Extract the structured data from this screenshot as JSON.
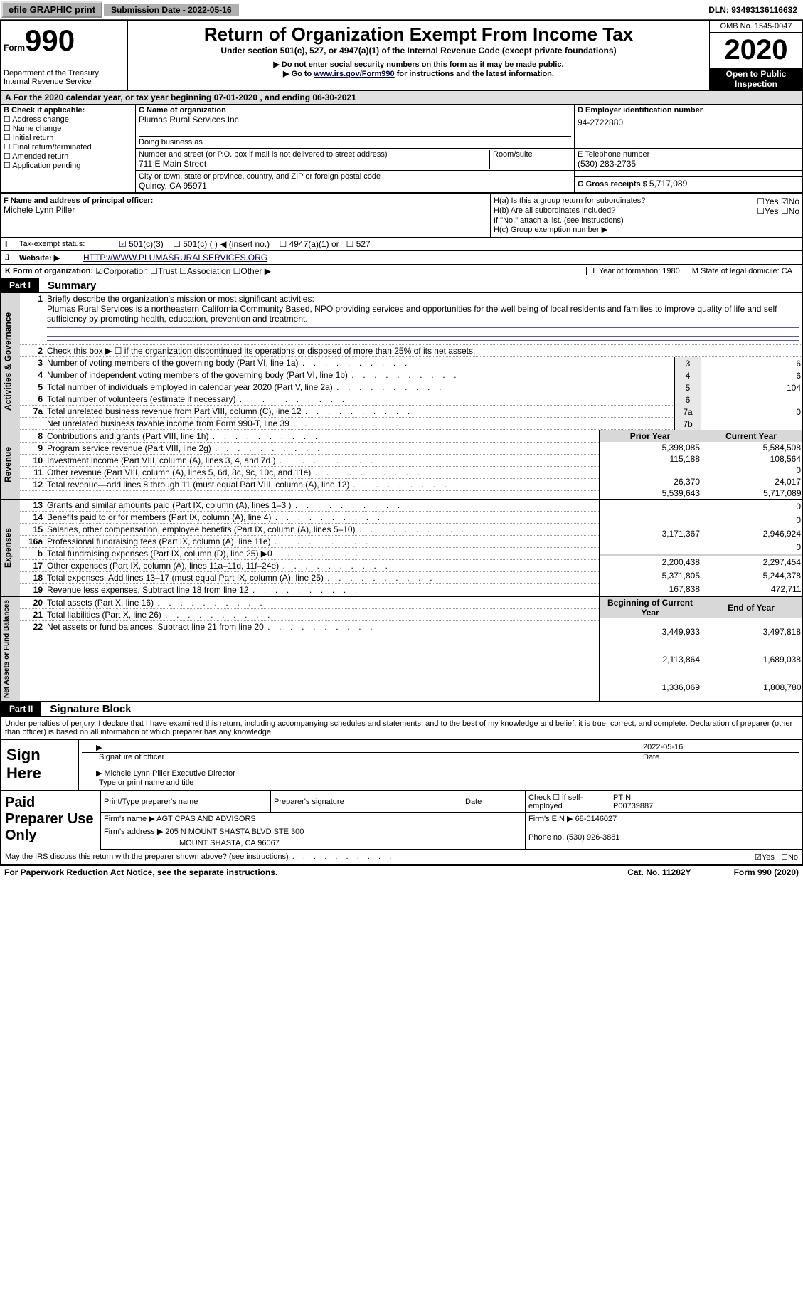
{
  "top": {
    "efile": "efile GRAPHIC print",
    "submission_lbl": "Submission Date - ",
    "submission_date": "2022-05-16",
    "dln_lbl": "DLN: ",
    "dln": "93493136116632"
  },
  "hdr": {
    "form_word": "Form",
    "form_num": "990",
    "dept": "Department of the Treasury\nInternal Revenue Service",
    "title": "Return of Organization Exempt From Income Tax",
    "subtitle": "Under section 501(c), 527, or 4947(a)(1) of the Internal Revenue Code (except private foundations)",
    "note1": "▶ Do not enter social security numbers on this form as it may be made public.",
    "note2_a": "▶ Go to ",
    "note2_link": "www.irs.gov/Form990",
    "note2_b": " for instructions and the latest information.",
    "omb": "OMB No. 1545-0047",
    "year": "2020",
    "open": "Open to Public Inspection"
  },
  "rowA": "A For the 2020 calendar year, or tax year beginning 07-01-2020    , and ending 06-30-2021",
  "B": {
    "hdr": "B Check if applicable:",
    "items": [
      "Address change",
      "Name change",
      "Initial return",
      "Final return/terminated",
      "Amended return",
      "Application pending"
    ]
  },
  "C": {
    "lbl": "C Name of organization",
    "name": "Plumas Rural Services Inc",
    "dba_lbl": "Doing business as",
    "street_lbl": "Number and street (or P.O. box if mail is not delivered to street address)",
    "room_lbl": "Room/suite",
    "street": "711 E Main Street",
    "city_lbl": "City or town, state or province, country, and ZIP or foreign postal code",
    "city": "Quincy, CA  95971"
  },
  "D": {
    "lbl": "D Employer identification number",
    "val": "94-2722880"
  },
  "E": {
    "lbl": "E Telephone number",
    "val": "(530) 283-2735"
  },
  "G": {
    "lbl": "G Gross receipts $ ",
    "val": "5,717,089"
  },
  "F": {
    "lbl": "F  Name and address of principal officer:",
    "val": "Michele Lynn Piller"
  },
  "H": {
    "a": "H(a)  Is this a group return for subordinates?",
    "b": "H(b)  Are all subordinates included?",
    "note": "If \"No,\" attach a list. (see instructions)",
    "c": "H(c)  Group exemption number ▶",
    "yes": "Yes",
    "no": "No"
  },
  "I": {
    "lbl": "Tax-exempt status:",
    "opts": [
      "501(c)(3)",
      "501(c) (   ) ◀ (insert no.)",
      "4947(a)(1) or",
      "527"
    ]
  },
  "J": {
    "lbl": "Website: ▶",
    "val": "HTTP://WWW.PLUMASRURALSERVICES.ORG"
  },
  "K": {
    "lbl": "K Form of organization:",
    "opts": [
      "Corporation",
      "Trust",
      "Association",
      "Other ▶"
    ]
  },
  "L": "L Year of formation: 1980",
  "M": "M State of legal domicile: CA",
  "part1": {
    "pn": "Part I",
    "pt": "Summary",
    "desc_lbl": "Briefly describe the organization's mission or most significant activities:",
    "desc": "Plumas Rural Services is a northeastern California Community Based, NPO providing services and opportunities for the well being of local residents and families to improve quality of life and self sufficiency by promoting health, education, prevention and treatment.",
    "l2": "Check this box ▶ ☐  if the organization discontinued its operations or disposed of more than 25% of its net assets.",
    "gov_lbl": "Activities & Governance",
    "rev_lbl": "Revenue",
    "exp_lbl": "Expenses",
    "net_lbl": "Net Assets or Fund Balances",
    "cols": {
      "py": "Prior Year",
      "cy": "Current Year",
      "bcy": "Beginning of Current Year",
      "eoy": "End of Year"
    },
    "rows_gov": [
      {
        "n": "3",
        "t": "Number of voting members of the governing body (Part VI, line 1a)",
        "k": "3",
        "v": "6"
      },
      {
        "n": "4",
        "t": "Number of independent voting members of the governing body (Part VI, line 1b)",
        "k": "4",
        "v": "6"
      },
      {
        "n": "5",
        "t": "Total number of individuals employed in calendar year 2020 (Part V, line 2a)",
        "k": "5",
        "v": "104"
      },
      {
        "n": "6",
        "t": "Total number of volunteers (estimate if necessary)",
        "k": "6",
        "v": ""
      },
      {
        "n": "7a",
        "t": "Total unrelated business revenue from Part VIII, column (C), line 12",
        "k": "7a",
        "v": "0"
      },
      {
        "n": "",
        "t": "Net unrelated business taxable income from Form 990-T, line 39",
        "k": "7b",
        "v": ""
      }
    ],
    "rows_rev": [
      {
        "n": "8",
        "t": "Contributions and grants (Part VIII, line 1h)",
        "py": "5,398,085",
        "cy": "5,584,508"
      },
      {
        "n": "9",
        "t": "Program service revenue (Part VIII, line 2g)",
        "py": "115,188",
        "cy": "108,564"
      },
      {
        "n": "10",
        "t": "Investment income (Part VIII, column (A), lines 3, 4, and 7d )",
        "py": "",
        "cy": "0"
      },
      {
        "n": "11",
        "t": "Other revenue (Part VIII, column (A), lines 5, 6d, 8c, 9c, 10c, and 11e)",
        "py": "26,370",
        "cy": "24,017"
      },
      {
        "n": "12",
        "t": "Total revenue—add lines 8 through 11 (must equal Part VIII, column (A), line 12)",
        "py": "5,539,643",
        "cy": "5,717,089"
      }
    ],
    "rows_exp": [
      {
        "n": "13",
        "t": "Grants and similar amounts paid (Part IX, column (A), lines 1–3 )",
        "py": "",
        "cy": "0"
      },
      {
        "n": "14",
        "t": "Benefits paid to or for members (Part IX, column (A), line 4)",
        "py": "",
        "cy": "0"
      },
      {
        "n": "15",
        "t": "Salaries, other compensation, employee benefits (Part IX, column (A), lines 5–10)",
        "py": "3,171,367",
        "cy": "2,946,924"
      },
      {
        "n": "16a",
        "t": "Professional fundraising fees (Part IX, column (A), line 11e)",
        "py": "",
        "cy": "0"
      },
      {
        "n": "b",
        "t": "Total fundraising expenses (Part IX, column (D), line 25) ▶0",
        "py": "-shade-",
        "cy": "-shade-"
      },
      {
        "n": "17",
        "t": "Other expenses (Part IX, column (A), lines 11a–11d, 11f–24e)",
        "py": "2,200,438",
        "cy": "2,297,454"
      },
      {
        "n": "18",
        "t": "Total expenses. Add lines 13–17 (must equal Part IX, column (A), line 25)",
        "py": "5,371,805",
        "cy": "5,244,378"
      },
      {
        "n": "19",
        "t": "Revenue less expenses. Subtract line 18 from line 12",
        "py": "167,838",
        "cy": "472,711"
      }
    ],
    "rows_net": [
      {
        "n": "20",
        "t": "Total assets (Part X, line 16)",
        "py": "3,449,933",
        "cy": "3,497,818"
      },
      {
        "n": "21",
        "t": "Total liabilities (Part X, line 26)",
        "py": "2,113,864",
        "cy": "1,689,038"
      },
      {
        "n": "22",
        "t": "Net assets or fund balances. Subtract line 21 from line 20",
        "py": "1,336,069",
        "cy": "1,808,780"
      }
    ]
  },
  "part2": {
    "pn": "Part II",
    "pt": "Signature Block",
    "declaration": "Under penalties of perjury, I declare that I have examined this return, including accompanying schedules and statements, and to the best of my knowledge and belief, it is true, correct, and complete. Declaration of preparer (other than officer) is based on all information of which preparer has any knowledge.",
    "sign_here": "Sign Here",
    "sig_officer_lbl": "Signature of officer",
    "sig_date": "2022-05-16",
    "date_lbl": "Date",
    "officer_name": "Michele Lynn Piller  Executive Director",
    "type_lbl": "Type or print name and title",
    "paid": "Paid Preparer Use Only",
    "prep_tbl": {
      "h1": "Print/Type preparer's name",
      "h2": "Preparer's signature",
      "h3": "Date",
      "h4a": "Check ☐ if self-employed",
      "h4b_lbl": "PTIN",
      "h4b": "P00739887",
      "firm_lbl": "Firm's name      ▶",
      "firm": "AGT CPAS AND ADVISORS",
      "ein_lbl": "Firm's EIN ▶",
      "ein": "68-0146027",
      "addr_lbl": "Firm's address ▶",
      "addr1": "205 N MOUNT SHASTA BLVD STE 300",
      "addr2": "MOUNT SHASTA, CA  96067",
      "phone_lbl": "Phone no.",
      "phone": "(530) 926-3881"
    },
    "irs_q": "May the IRS discuss this return with the preparer shown above? (see instructions)",
    "yes": "Yes",
    "no": "No"
  },
  "footer": {
    "left": "For Paperwork Reduction Act Notice, see the separate instructions.",
    "mid": "Cat. No. 11282Y",
    "right": "Form 990 (2020)"
  }
}
